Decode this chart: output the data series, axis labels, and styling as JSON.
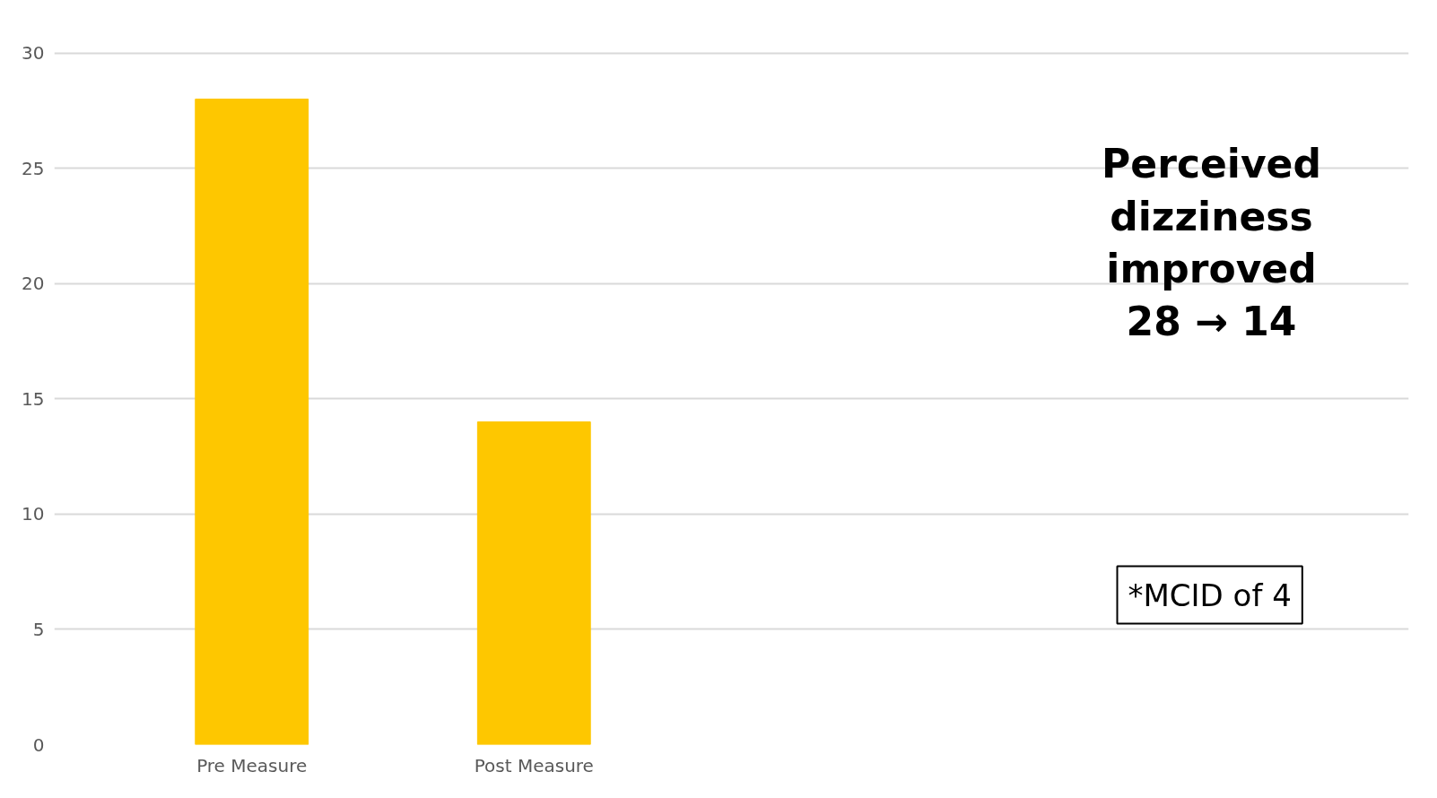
{
  "chart_data": {
    "type": "bar",
    "categories": [
      "Pre Measure",
      "Post Measure"
    ],
    "values": [
      28,
      14
    ],
    "color": "#fec700",
    "ylim": [
      0,
      30
    ],
    "yticks": [
      0,
      5,
      10,
      15,
      20,
      25,
      30
    ],
    "grid": "y",
    "annotations": [
      "Perceived\ndizziness\nimproved\n28 → 14",
      "*MCID of 4"
    ]
  }
}
